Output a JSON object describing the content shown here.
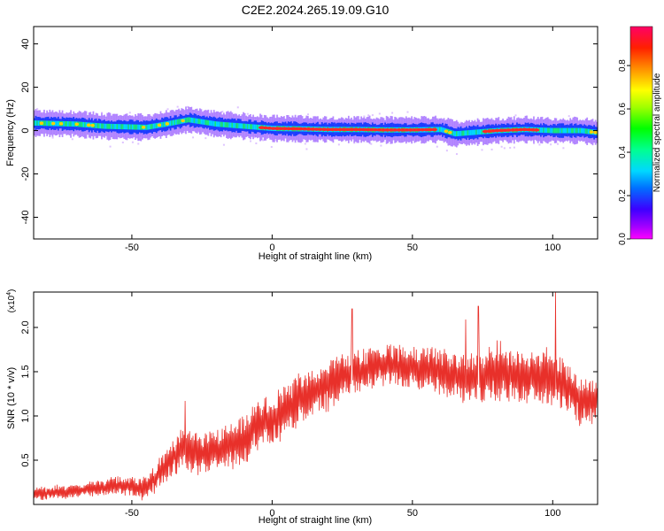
{
  "title": "C2E2.2024.265.19.09.G10",
  "chart_data": [
    {
      "type": "heatmap",
      "xlabel": "Height of straight line (km)",
      "ylabel": "Frequency (Hz)",
      "xlim": [
        -85,
        116
      ],
      "ylim": [
        -50,
        48
      ],
      "xticks": [
        -50,
        0,
        50,
        100
      ],
      "yticks": [
        -40,
        -20,
        0,
        20,
        40
      ],
      "colorbar": {
        "label": "Normalized spectral amplitude",
        "range": [
          0.0,
          0.98
        ],
        "ticks": [
          0.0,
          0.2,
          0.4,
          0.6,
          0.8
        ]
      },
      "ridge": {
        "x": [
          -85,
          -70,
          -60,
          -45,
          -38,
          -30,
          -25,
          -20,
          -10,
          0,
          10,
          20,
          30,
          40,
          50,
          60,
          65,
          70,
          80,
          90,
          100,
          110,
          116
        ],
        "frequency": [
          3.5,
          3.0,
          2.0,
          1.5,
          3.0,
          5.0,
          4.0,
          3.0,
          2.0,
          1.0,
          0.8,
          0.5,
          0.5,
          0.3,
          0.3,
          0.5,
          -1.5,
          -1.0,
          0.0,
          0.5,
          0.0,
          0.0,
          -1.0
        ]
      },
      "peak_segments": [
        [
          -5,
          58
        ],
        [
          75,
          95
        ]
      ]
    },
    {
      "type": "line",
      "xlabel": "Height of straight line (km)",
      "ylabel": "SNR (10 * v/v)",
      "yscale_label": "(x10",
      "yscale_exp": "4",
      "xlim": [
        -85,
        116
      ],
      "ylim": [
        0,
        2.4
      ],
      "xticks": [
        -50,
        0,
        50,
        100
      ],
      "yticks": [
        0.5,
        1.0,
        1.5,
        2.0
      ],
      "ytick_labels": [
        "0.5",
        "1.0",
        "1.5",
        "2.0"
      ],
      "series": [
        {
          "color": "#e8302a",
          "trend_x": [
            -85,
            -70,
            -55,
            -45,
            -38,
            -32,
            -25,
            -20,
            -10,
            -5,
            0,
            5,
            10,
            20,
            30,
            40,
            50,
            60,
            70,
            80,
            90,
            100,
            105,
            110,
            116
          ],
          "trend_y": [
            0.12,
            0.15,
            0.22,
            0.18,
            0.42,
            0.65,
            0.55,
            0.6,
            0.72,
            0.9,
            0.95,
            1.05,
            1.2,
            1.35,
            1.5,
            1.58,
            1.55,
            1.5,
            1.42,
            1.5,
            1.45,
            1.45,
            1.35,
            1.15,
            1.2
          ],
          "noise_x": [
            -85,
            -50,
            -40,
            -20,
            0,
            20,
            40,
            60,
            80,
            100,
            116
          ],
          "noise_amp": [
            0.07,
            0.1,
            0.18,
            0.25,
            0.28,
            0.28,
            0.22,
            0.25,
            0.32,
            0.3,
            0.25
          ],
          "peaks": [
            {
              "x": 28.5,
              "y": 2.21
            },
            {
              "x": 69.0,
              "y": 2.09
            },
            {
              "x": 73.5,
              "y": 2.24
            },
            {
              "x": 101.0,
              "y": 2.4
            },
            {
              "x": -31.0,
              "y": 1.17
            }
          ]
        }
      ]
    }
  ]
}
